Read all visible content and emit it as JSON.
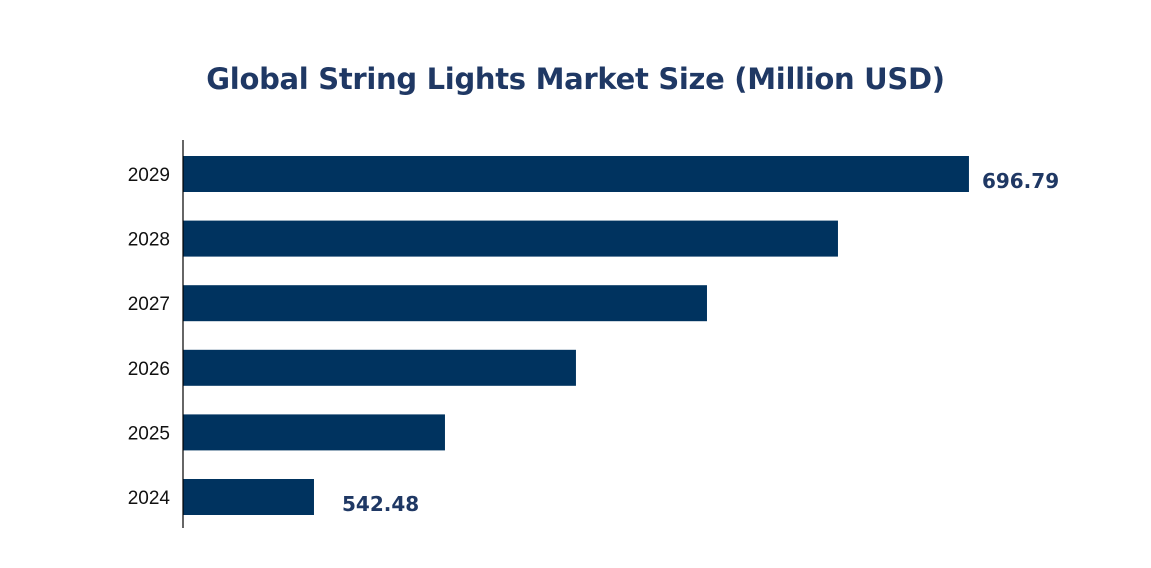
{
  "chart_data": {
    "type": "bar",
    "orientation": "horizontal",
    "title": "Global String Lights Market Size (Million USD)",
    "categories": [
      "2029",
      "2028",
      "2027",
      "2026",
      "2025",
      "2024"
    ],
    "values": [
      696.79,
      665.93,
      635.07,
      604.2,
      573.34,
      542.48
    ],
    "data_labels": {
      "2029": "696.79",
      "2024": "542.48"
    },
    "xlabel": "",
    "ylabel": "",
    "grid": false,
    "legend": "none",
    "colors": {
      "bar": "#00335F",
      "title": "#1F3864",
      "label": "#1F3864",
      "axis": "#000000"
    }
  }
}
